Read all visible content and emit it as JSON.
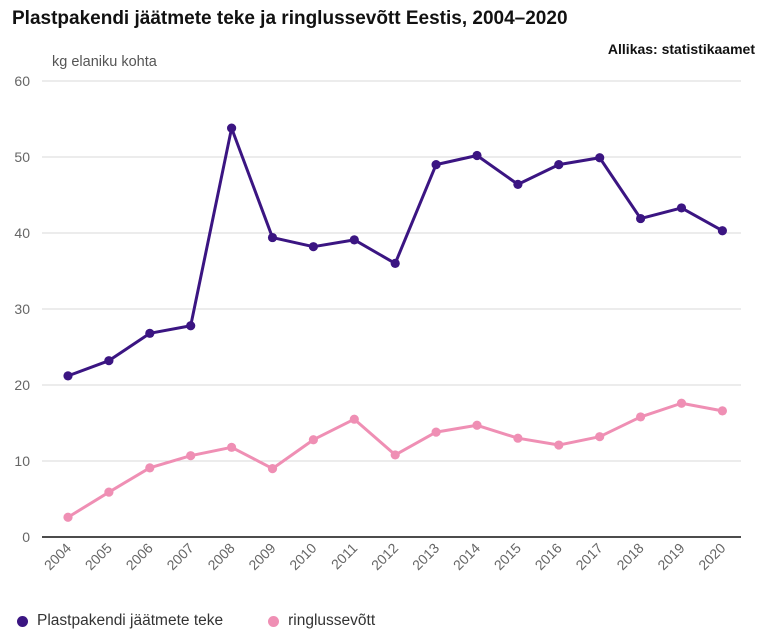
{
  "title": "Plastpakendi jäätmete teke ja ringlussevõtt Eestis, 2004–2020",
  "source": "Allikas: statistikaamet",
  "chart_data": {
    "type": "line",
    "ylabel": "kg elaniku kohta",
    "xlabel": "",
    "ylim": [
      0,
      60
    ],
    "yticks": [
      0,
      10,
      20,
      30,
      40,
      50,
      60
    ],
    "grid": true,
    "legend_position": "bottom-left",
    "categories": [
      "2004",
      "2005",
      "2006",
      "2007",
      "2008",
      "2009",
      "2010",
      "2011",
      "2012",
      "2013",
      "2014",
      "2015",
      "2016",
      "2017",
      "2018",
      "2019",
      "2020"
    ],
    "series": [
      {
        "name": "Plastpakendi jäätmete teke",
        "color": "#3b1582",
        "values": [
          21.2,
          23.2,
          26.8,
          27.8,
          53.8,
          39.4,
          38.2,
          39.1,
          36.0,
          49.0,
          50.2,
          46.4,
          49.0,
          49.9,
          41.9,
          43.3,
          40.3
        ]
      },
      {
        "name": "ringlussevõtt",
        "color": "#ef8fb4",
        "values": [
          2.6,
          5.9,
          9.1,
          10.7,
          11.8,
          9.0,
          12.8,
          15.5,
          10.8,
          13.8,
          14.7,
          13.0,
          12.1,
          13.2,
          15.8,
          17.6,
          16.6
        ]
      }
    ]
  }
}
